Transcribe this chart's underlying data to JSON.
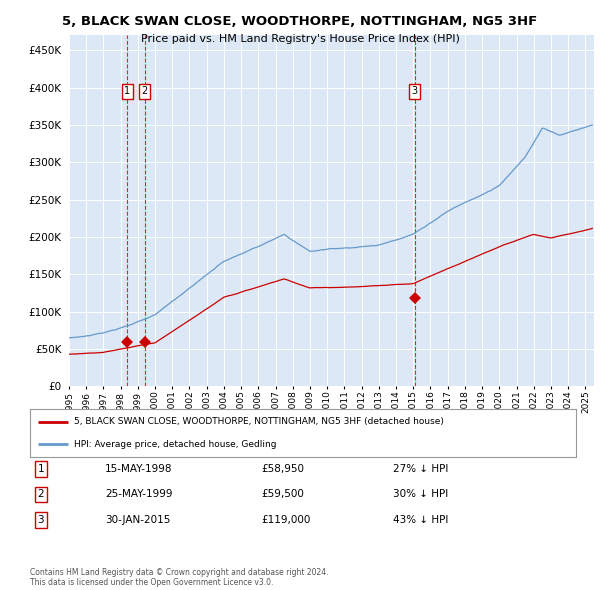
{
  "title": "5, BLACK SWAN CLOSE, WOODTHORPE, NOTTINGHAM, NG5 3HF",
  "subtitle": "Price paid vs. HM Land Registry's House Price Index (HPI)",
  "plot_bg_color": "#dce8f5",
  "hpi_color": "#6699cc",
  "price_color": "#cc0000",
  "sale_dates": [
    1998.37,
    1999.39,
    2015.08
  ],
  "sale_prices": [
    58950,
    59500,
    119000
  ],
  "sale_labels": [
    "1",
    "2",
    "3"
  ],
  "ytick_values": [
    0,
    50000,
    100000,
    150000,
    200000,
    250000,
    300000,
    350000,
    400000,
    450000
  ],
  "ylim": [
    0,
    470000
  ],
  "xlim_start": 1995.0,
  "xlim_end": 2025.5,
  "legend_line1": "5, BLACK SWAN CLOSE, WOODTHORPE, NOTTINGHAM, NG5 3HF (detached house)",
  "legend_line2": "HPI: Average price, detached house, Gedling",
  "table_rows": [
    [
      "1",
      "15-MAY-1998",
      "£58,950",
      "27% ↓ HPI"
    ],
    [
      "2",
      "25-MAY-1999",
      "£59,500",
      "30% ↓ HPI"
    ],
    [
      "3",
      "30-JAN-2015",
      "£119,000",
      "43% ↓ HPI"
    ]
  ],
  "footer": "Contains HM Land Registry data © Crown copyright and database right 2024.\nThis data is licensed under the Open Government Licence v3.0.",
  "xtick_years": [
    1995,
    1996,
    1997,
    1998,
    1999,
    2000,
    2001,
    2002,
    2003,
    2004,
    2005,
    2006,
    2007,
    2008,
    2009,
    2010,
    2011,
    2012,
    2013,
    2014,
    2015,
    2016,
    2017,
    2018,
    2019,
    2020,
    2021,
    2022,
    2023,
    2024,
    2025
  ]
}
